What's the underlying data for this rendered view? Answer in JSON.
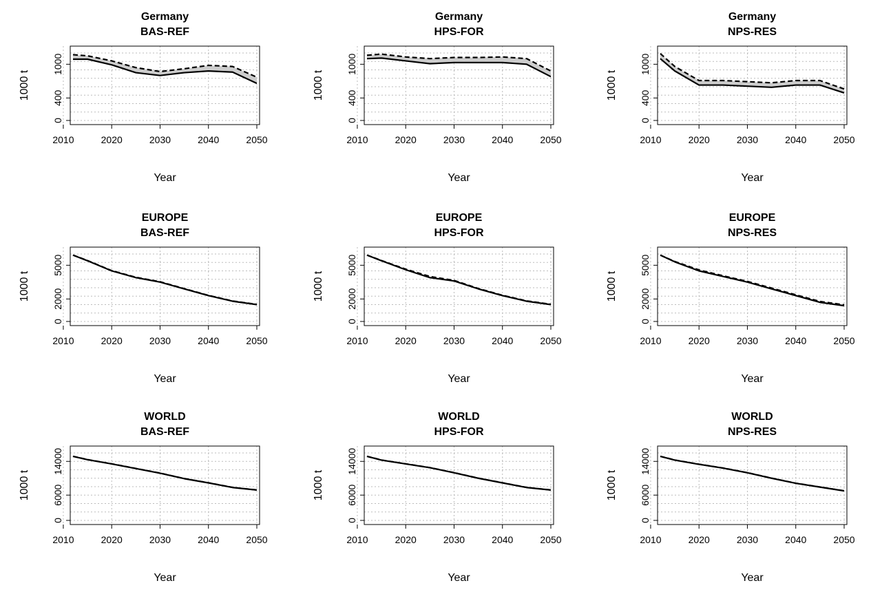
{
  "figure": {
    "background": "#ffffff",
    "band_color": "#cccccc",
    "line_color": "#000000",
    "grid_color": "#bbbbbb"
  },
  "chart_data": [
    {
      "type": "line",
      "region": "Germany",
      "scenario": "BAS-REF",
      "xlabel": "Year",
      "ylabel": "1000 t",
      "ylim": [
        0,
        1200
      ],
      "xlim": [
        2012,
        2050
      ],
      "xticks": [
        2010,
        2020,
        2030,
        2040,
        2050
      ],
      "yticks": [
        0,
        400,
        1000
      ],
      "grid": true,
      "x": [
        2012,
        2015,
        2020,
        2025,
        2030,
        2035,
        2040,
        2045,
        2050
      ],
      "series": [
        {
          "style": "solid",
          "values": [
            1090,
            1090,
            990,
            850,
            800,
            850,
            880,
            860,
            660
          ]
        },
        {
          "style": "dashed",
          "values": [
            1170,
            1150,
            1060,
            940,
            870,
            920,
            980,
            960,
            770
          ]
        }
      ],
      "band_between_series": true
    },
    {
      "type": "line",
      "region": "Germany",
      "scenario": "HPS-FOR",
      "xlabel": "Year",
      "ylabel": "1000 t",
      "ylim": [
        0,
        1200
      ],
      "xlim": [
        2012,
        2050
      ],
      "xticks": [
        2010,
        2020,
        2030,
        2040,
        2050
      ],
      "yticks": [
        0,
        400,
        1000
      ],
      "grid": true,
      "x": [
        2012,
        2015,
        2020,
        2025,
        2030,
        2035,
        2040,
        2045,
        2050
      ],
      "series": [
        {
          "style": "solid",
          "values": [
            1100,
            1110,
            1060,
            1010,
            1030,
            1030,
            1030,
            1000,
            780
          ]
        },
        {
          "style": "dashed",
          "values": [
            1160,
            1180,
            1130,
            1100,
            1120,
            1120,
            1130,
            1100,
            880
          ]
        }
      ],
      "band_between_series": true
    },
    {
      "type": "line",
      "region": "Germany",
      "scenario": "NPS-RES",
      "xlabel": "Year",
      "ylabel": "1000 t",
      "ylim": [
        0,
        1200
      ],
      "xlim": [
        2012,
        2050
      ],
      "xticks": [
        2010,
        2020,
        2030,
        2040,
        2050
      ],
      "yticks": [
        0,
        400,
        1000
      ],
      "grid": true,
      "x": [
        2012,
        2015,
        2020,
        2025,
        2030,
        2035,
        2040,
        2045,
        2050
      ],
      "series": [
        {
          "style": "solid",
          "values": [
            1100,
            880,
            630,
            630,
            610,
            590,
            630,
            630,
            490
          ]
        },
        {
          "style": "dashed",
          "values": [
            1190,
            960,
            710,
            710,
            690,
            670,
            710,
            710,
            560
          ]
        }
      ],
      "band_between_series": true
    },
    {
      "type": "line",
      "region": "EUROPE",
      "scenario": "BAS-REF",
      "xlabel": "Year",
      "ylabel": "1000 t",
      "ylim": [
        0,
        6000
      ],
      "xlim": [
        2012,
        2050
      ],
      "xticks": [
        2010,
        2020,
        2030,
        2040,
        2050
      ],
      "yticks": [
        0,
        2000,
        5000
      ],
      "grid": true,
      "x": [
        2012,
        2015,
        2020,
        2025,
        2030,
        2035,
        2040,
        2045,
        2050
      ],
      "series": [
        {
          "style": "solid",
          "values": [
            5900,
            5400,
            4500,
            3900,
            3500,
            2900,
            2300,
            1800,
            1500
          ]
        },
        {
          "style": "dashed",
          "values": [
            5900,
            5420,
            4520,
            3930,
            3530,
            2920,
            2320,
            1820,
            1520
          ]
        }
      ],
      "band_between_series": true
    },
    {
      "type": "line",
      "region": "EUROPE",
      "scenario": "HPS-FOR",
      "xlabel": "Year",
      "ylabel": "1000 t",
      "ylim": [
        0,
        6000
      ],
      "xlim": [
        2012,
        2050
      ],
      "xticks": [
        2010,
        2020,
        2030,
        2040,
        2050
      ],
      "yticks": [
        0,
        2000,
        5000
      ],
      "grid": true,
      "x": [
        2012,
        2015,
        2020,
        2025,
        2030,
        2035,
        2040,
        2045,
        2050
      ],
      "series": [
        {
          "style": "solid",
          "values": [
            5900,
            5400,
            4600,
            3900,
            3600,
            2900,
            2300,
            1800,
            1500
          ]
        },
        {
          "style": "dashed",
          "values": [
            5900,
            5420,
            4650,
            4000,
            3650,
            2930,
            2330,
            1830,
            1530
          ]
        }
      ],
      "band_between_series": true
    },
    {
      "type": "line",
      "region": "EUROPE",
      "scenario": "NPS-RES",
      "xlabel": "Year",
      "ylabel": "1000 t",
      "ylim": [
        0,
        6000
      ],
      "xlim": [
        2012,
        2050
      ],
      "xticks": [
        2010,
        2020,
        2030,
        2040,
        2050
      ],
      "yticks": [
        0,
        2000,
        5000
      ],
      "grid": true,
      "x": [
        2012,
        2015,
        2020,
        2025,
        2030,
        2035,
        2040,
        2045,
        2050
      ],
      "series": [
        {
          "style": "solid",
          "values": [
            5900,
            5300,
            4500,
            4000,
            3500,
            2900,
            2300,
            1700,
            1400
          ]
        },
        {
          "style": "dashed",
          "values": [
            5900,
            5330,
            4580,
            4060,
            3560,
            2970,
            2370,
            1780,
            1480
          ]
        }
      ],
      "band_between_series": true
    },
    {
      "type": "line",
      "region": "WORLD",
      "scenario": "BAS-REF",
      "xlabel": "Year",
      "ylabel": "1000 t",
      "ylim": [
        0,
        16000
      ],
      "xlim": [
        2012,
        2050
      ],
      "xticks": [
        2010,
        2020,
        2030,
        2040,
        2050
      ],
      "yticks": [
        0,
        6000,
        14000
      ],
      "grid": true,
      "x": [
        2012,
        2015,
        2020,
        2025,
        2030,
        2035,
        2040,
        2045,
        2050
      ],
      "series": [
        {
          "style": "solid",
          "values": [
            15200,
            14400,
            13400,
            12300,
            11200,
            9900,
            8900,
            7800,
            7200
          ]
        },
        {
          "style": "dashed",
          "values": [
            15200,
            14420,
            13420,
            12320,
            11220,
            9920,
            8920,
            7820,
            7220
          ]
        }
      ],
      "band_between_series": true
    },
    {
      "type": "line",
      "region": "WORLD",
      "scenario": "HPS-FOR",
      "xlabel": "Year",
      "ylabel": "1000 t",
      "ylim": [
        0,
        16000
      ],
      "xlim": [
        2012,
        2050
      ],
      "xticks": [
        2010,
        2020,
        2030,
        2040,
        2050
      ],
      "yticks": [
        0,
        6000,
        14000
      ],
      "grid": true,
      "x": [
        2012,
        2015,
        2020,
        2025,
        2030,
        2035,
        2040,
        2045,
        2050
      ],
      "series": [
        {
          "style": "solid",
          "values": [
            15200,
            14300,
            13400,
            12500,
            11300,
            10000,
            8900,
            7800,
            7200
          ]
        },
        {
          "style": "dashed",
          "values": [
            15200,
            14320,
            13420,
            12520,
            11320,
            10020,
            8920,
            7820,
            7220
          ]
        }
      ],
      "band_between_series": true
    },
    {
      "type": "line",
      "region": "WORLD",
      "scenario": "NPS-RES",
      "xlabel": "Year",
      "ylabel": "1000 t",
      "ylim": [
        0,
        16000
      ],
      "xlim": [
        2012,
        2050
      ],
      "xticks": [
        2010,
        2020,
        2030,
        2040,
        2050
      ],
      "yticks": [
        0,
        6000,
        14000
      ],
      "grid": true,
      "x": [
        2012,
        2015,
        2020,
        2025,
        2030,
        2035,
        2040,
        2045,
        2050
      ],
      "series": [
        {
          "style": "solid",
          "values": [
            15200,
            14300,
            13300,
            12400,
            11300,
            10000,
            8800,
            7900,
            7000
          ]
        },
        {
          "style": "dashed",
          "values": [
            15200,
            14320,
            13320,
            12420,
            11320,
            10020,
            8820,
            7920,
            7020
          ]
        }
      ],
      "band_between_series": true
    }
  ]
}
